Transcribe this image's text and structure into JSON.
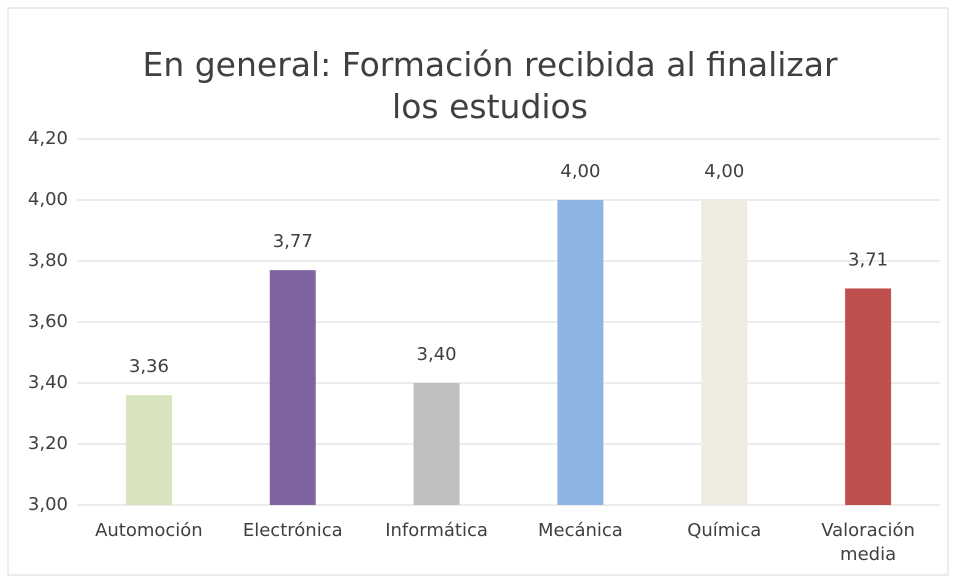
{
  "chart_data": {
    "type": "bar",
    "title": "En general: Formación recibida al finalizar los estudios",
    "categories": [
      "Automoción",
      "Electrónica",
      "Informática",
      "Mecánica",
      "Química",
      "Valoración media"
    ],
    "values": [
      3.36,
      3.77,
      3.4,
      4.0,
      4.0,
      3.71
    ],
    "value_labels": [
      "3,36",
      "3,77",
      "3,40",
      "4,00",
      "4,00",
      "3,71"
    ],
    "colors": [
      "#d7e4bd",
      "#8064a2",
      "#bfbfbf",
      "#8eb4e3",
      "#eeece1",
      "#c0504d"
    ],
    "ylim": [
      3.0,
      4.2
    ],
    "yticks": [
      {
        "value": 3.0,
        "label": "3,00"
      },
      {
        "value": 3.2,
        "label": "3,20"
      },
      {
        "value": 3.4,
        "label": "3,40"
      },
      {
        "value": 3.6,
        "label": "3,60"
      },
      {
        "value": 3.8,
        "label": "3,80"
      },
      {
        "value": 4.0,
        "label": "4,00"
      },
      {
        "value": 4.2,
        "label": "4,20"
      }
    ],
    "grid": true
  }
}
